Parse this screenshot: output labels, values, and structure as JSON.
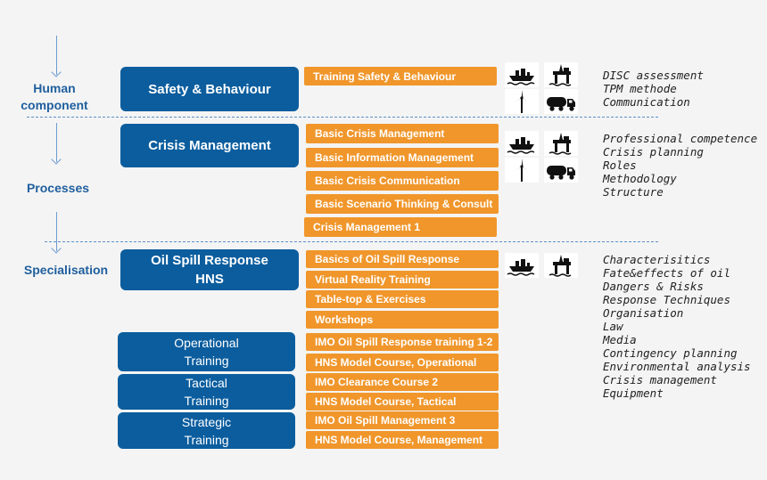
{
  "left_labels": {
    "human": "Human\ncomponent",
    "processes": "Processes",
    "specialisation": "Specialisation"
  },
  "sections": {
    "safety": {
      "title": "Safety & Behaviour",
      "courses": [
        "Training Safety & Behaviour"
      ],
      "notes": [
        "DISC assessment",
        "TPM methode",
        "Communication"
      ],
      "icons": [
        "ship-icon",
        "oil-rig-icon",
        "wind-turbine-icon",
        "tanker-truck-icon"
      ]
    },
    "crisis": {
      "title": "Crisis Management",
      "courses": [
        "Basic Crisis Management",
        "Basic Information Management",
        "Basic Crisis Communication",
        "Basic Scenario Thinking & Consult",
        "Crisis Management 1"
      ],
      "notes": [
        "Professional competence",
        "Crisis planning",
        "Roles",
        "Methodology",
        "Structure"
      ],
      "icons": [
        "ship-icon",
        "oil-rig-icon",
        "wind-turbine-icon",
        "tanker-truck-icon"
      ]
    },
    "oil": {
      "title": "Oil Spill Response\nHNS",
      "courses": [
        "Basics of Oil Spill Response",
        "Virtual Reality Training",
        "Table-top & Exercises",
        "Workshops"
      ],
      "notes": [
        "Characterisitics",
        "Fate&effects of oil",
        "Dangers & Risks",
        "Response Techniques",
        "Organisation",
        "Law",
        "Media",
        "Contingency planning",
        "Environmental analysis",
        "Crisis management",
        "Equipment"
      ],
      "icons": [
        "ship-icon",
        "oil-rig-icon"
      ]
    },
    "operational": {
      "title": "Operational\nTraining",
      "courses": [
        "IMO Oil Spill Response training 1-2",
        "HNS Model Course, Operational"
      ]
    },
    "tactical": {
      "title": "Tactical\nTraining",
      "courses": [
        "IMO Clearance Course 2",
        "HNS Model Course, Tactical"
      ]
    },
    "strategic": {
      "title": "Strategic\nTraining",
      "courses": [
        "IMO Oil Spill Management 3",
        "HNS Model Course, Management"
      ]
    }
  },
  "colors": {
    "blue": "#0b5d9e",
    "orange": "#f0962b",
    "label": "#1f5f9e"
  }
}
